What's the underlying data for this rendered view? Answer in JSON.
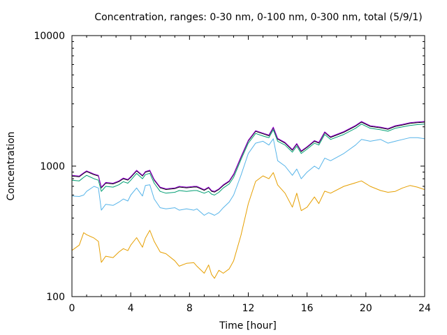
{
  "chart_data": {
    "type": "line",
    "title": "Concentration, ranges: 0-30 nm, 0-100 nm, 0-300 nm, total (5/9/1)",
    "xlabel": "Time [hour]",
    "ylabel": "Concentration",
    "xlim": [
      0,
      24
    ],
    "ylim": [
      100,
      10000
    ],
    "yscale": "log",
    "xticks": [
      "0",
      "4",
      "8",
      "12",
      "16",
      "20",
      "24"
    ],
    "xtick_values": [
      0,
      4,
      8,
      12,
      16,
      20,
      24
    ],
    "yticks": [
      "100",
      "1000",
      "10000"
    ],
    "ytick_values": [
      100,
      1000,
      10000
    ],
    "grid": false,
    "x": [
      0,
      0.5,
      0.8,
      1,
      1.5,
      1.8,
      2,
      2.3,
      2.8,
      3.2,
      3.5,
      3.8,
      4,
      4.4,
      4.8,
      5,
      5.3,
      5.6,
      6,
      6.4,
      7,
      7.3,
      7.8,
      8.3,
      8.5,
      9,
      9.3,
      9.5,
      9.7,
      10,
      10.3,
      10.7,
      11,
      11.5,
      12,
      12.5,
      13,
      13.4,
      13.7,
      14,
      14.5,
      15,
      15.3,
      15.6,
      16,
      16.5,
      16.8,
      17.2,
      17.6,
      18.5,
      19.3,
      19.7,
      20.3,
      21,
      21.5,
      22,
      22.5,
      23,
      23.5,
      24
    ],
    "series": [
      {
        "name": "0-30 nm",
        "color": "#e69f00",
        "values": [
          226,
          248,
          309,
          298,
          281,
          265,
          183,
          204,
          199,
          220,
          233,
          225,
          248,
          283,
          239,
          281,
          322,
          265,
          220,
          213,
          188,
          171,
          180,
          182,
          171,
          151,
          175,
          148,
          138,
          159,
          151,
          163,
          188,
          295,
          515,
          764,
          842,
          800,
          892,
          716,
          620,
          485,
          620,
          456,
          485,
          580,
          516,
          643,
          620,
          700,
          745,
          770,
          700,
          650,
          630,
          640,
          680,
          710,
          690,
          660
        ]
      },
      {
        "name": "0-100 nm",
        "color": "#56b4e9",
        "values": [
          590,
          585,
          600,
          640,
          700,
          680,
          460,
          510,
          500,
          530,
          560,
          540,
          600,
          680,
          590,
          710,
          720,
          560,
          480,
          470,
          480,
          460,
          470,
          460,
          470,
          420,
          440,
          430,
          420,
          440,
          480,
          530,
          600,
          850,
          1250,
          1500,
          1550,
          1450,
          1620,
          1100,
          1000,
          850,
          950,
          800,
          900,
          1000,
          950,
          1150,
          1100,
          1250,
          1450,
          1600,
          1550,
          1600,
          1500,
          1550,
          1600,
          1650,
          1650,
          1620
        ]
      },
      {
        "name": "0-300 nm",
        "color": "#009e73",
        "values": [
          780,
          770,
          820,
          850,
          800,
          780,
          640,
          700,
          690,
          720,
          760,
          740,
          780,
          880,
          800,
          860,
          880,
          740,
          640,
          620,
          630,
          650,
          640,
          650,
          650,
          620,
          640,
          610,
          600,
          630,
          680,
          730,
          820,
          1120,
          1500,
          1780,
          1700,
          1650,
          1900,
          1550,
          1450,
          1280,
          1420,
          1250,
          1350,
          1500,
          1450,
          1750,
          1600,
          1750,
          1950,
          2100,
          1950,
          1900,
          1850,
          1950,
          2000,
          2050,
          2080,
          2100
        ]
      },
      {
        "name": "total",
        "color": "#9400d3",
        "values": [
          850,
          840,
          890,
          920,
          870,
          850,
          690,
          750,
          740,
          770,
          810,
          790,
          830,
          930,
          850,
          910,
          930,
          790,
          690,
          670,
          680,
          700,
          690,
          700,
          700,
          660,
          690,
          650,
          640,
          670,
          720,
          770,
          870,
          1180,
          1580,
          1870,
          1790,
          1730,
          1990,
          1630,
          1520,
          1340,
          1490,
          1310,
          1410,
          1570,
          1520,
          1830,
          1680,
          1840,
          2050,
          2200,
          2040,
          1990,
          1940,
          2040,
          2090,
          2150,
          2180,
          2200
        ]
      }
    ]
  }
}
